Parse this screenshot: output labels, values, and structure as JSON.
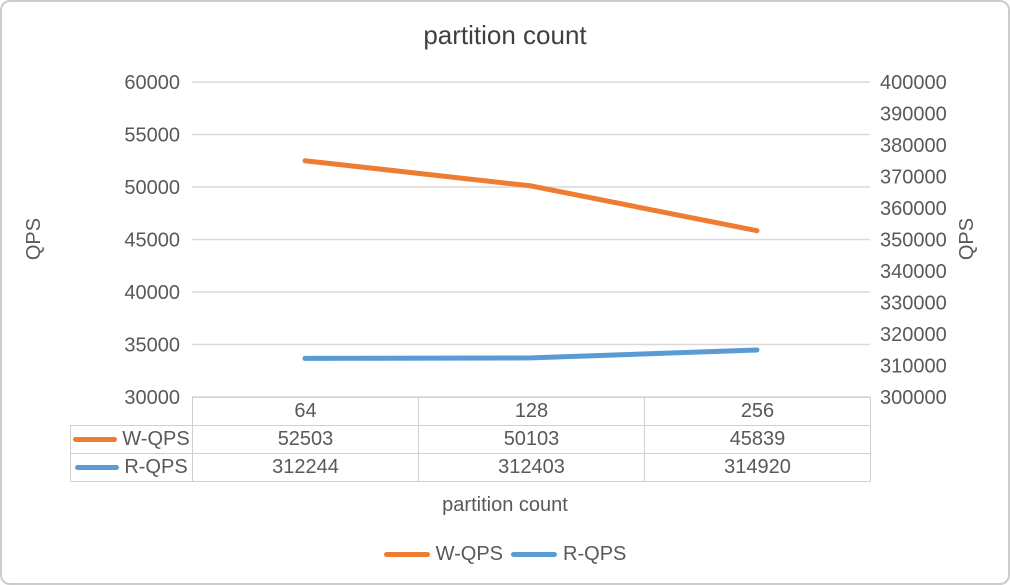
{
  "chart_data": {
    "type": "line",
    "title": "partition count",
    "xlabel": "partition count",
    "categories": [
      "64",
      "128",
      "256"
    ],
    "series": [
      {
        "name": "W-QPS",
        "axis": "left",
        "color": "#ED7D31",
        "values": [
          52503,
          50103,
          45839
        ]
      },
      {
        "name": "R-QPS",
        "axis": "right",
        "color": "#5B9BD5",
        "values": [
          312244,
          312403,
          314920
        ]
      }
    ],
    "left_axis": {
      "label": "QPS",
      "min": 30000,
      "max": 60000,
      "step": 5000,
      "tick_labels": [
        "60000",
        "55000",
        "50000",
        "45000",
        "40000",
        "35000",
        "30000"
      ]
    },
    "right_axis": {
      "label": "QPS",
      "min": 300000,
      "max": 400000,
      "step": 10000,
      "tick_labels": [
        "400000",
        "390000",
        "380000",
        "370000",
        "360000",
        "350000",
        "340000",
        "330000",
        "320000",
        "310000",
        "300000"
      ]
    },
    "grid": true,
    "legend_position": "bottom",
    "data_table": true
  },
  "colors": {
    "grid": "#D9D9D9",
    "axis_text": "#595959",
    "title_text": "#404040",
    "table_border": "#D0D0D0",
    "frame_border": "#CCCCCC",
    "background": "#FFFFFF"
  }
}
